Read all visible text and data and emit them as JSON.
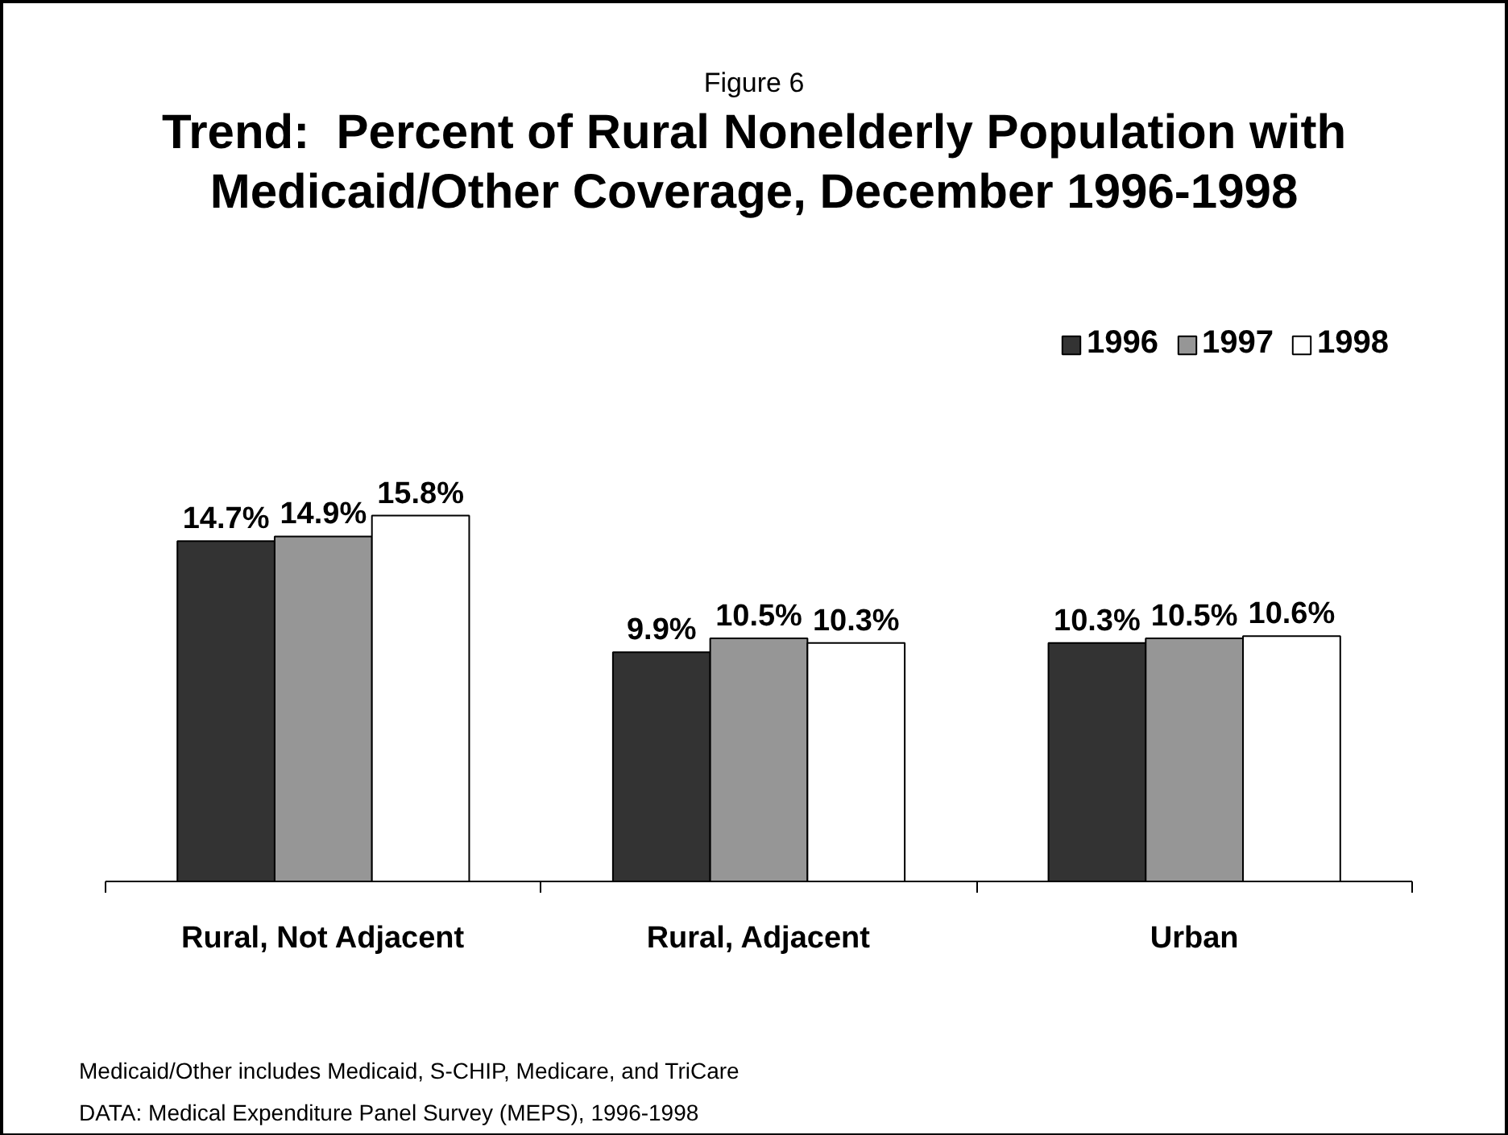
{
  "chart_data": {
    "type": "bar",
    "subtitle": "Figure 6",
    "title": "Trend:  Percent of Rural Nonelderly Population with Medicaid/Other Coverage, December 1996-1998",
    "annotations": [
      "Medicaid/Other includes Medicaid, S-CHIP, Medicare, and TriCare",
      "DATA: Medical Expenditure Panel Survey (MEPS), 1996-1998"
    ],
    "categories": [
      "Rural, Not Adjacent",
      "Rural, Adjacent",
      "Urban"
    ],
    "series": [
      {
        "name": "1996",
        "color": "#333333",
        "values": [
          14.7,
          9.9,
          10.3
        ],
        "value_labels": [
          "14.7%",
          "9.9%",
          "10.3%"
        ]
      },
      {
        "name": "1997",
        "color": "#969696",
        "values": [
          14.9,
          10.5,
          10.5
        ],
        "value_labels": [
          "14.9%",
          "10.5%",
          "10.5%"
        ]
      },
      {
        "name": "1998",
        "color": "#ffffff",
        "values": [
          15.8,
          10.3,
          10.6
        ],
        "value_labels": [
          "15.8%",
          "10.3%",
          "10.6%"
        ]
      }
    ],
    "tick_labels": "x",
    "legend": "top right"
  }
}
